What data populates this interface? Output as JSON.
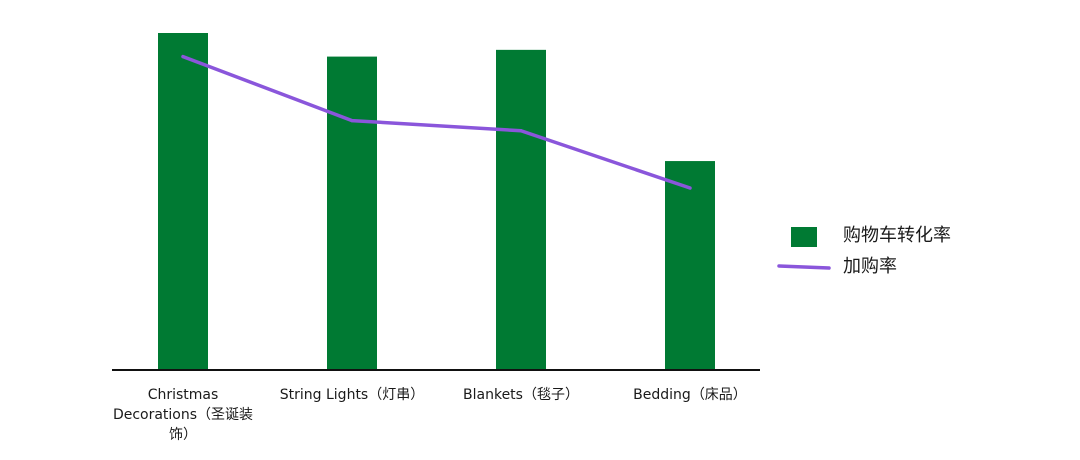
{
  "chart_data": {
    "type": "bar",
    "categories": [
      "Christmas Decorations（圣诞装饰）",
      "String Lights（灯串）",
      "Blankets（毯子）",
      "Bedding（床品）"
    ],
    "category_label_lines": [
      [
        "Christmas",
        "Decorations（圣诞装",
        "饰）"
      ],
      [
        "String Lights（灯串）"
      ],
      [
        "Blankets（毯子）"
      ],
      [
        "Bedding（床品）"
      ]
    ],
    "series": [
      {
        "name": "购物车转化率",
        "type": "bar",
        "color": "#007a33",
        "values": [
          100,
          93,
          95,
          62
        ]
      },
      {
        "name": "加购率",
        "type": "line",
        "color": "#8a56db",
        "values": [
          93,
          74,
          71,
          54
        ]
      }
    ],
    "ylim": [
      0,
      100
    ],
    "title": "",
    "xlabel": "",
    "ylabel": "",
    "grid": false,
    "legend_position": "right"
  }
}
